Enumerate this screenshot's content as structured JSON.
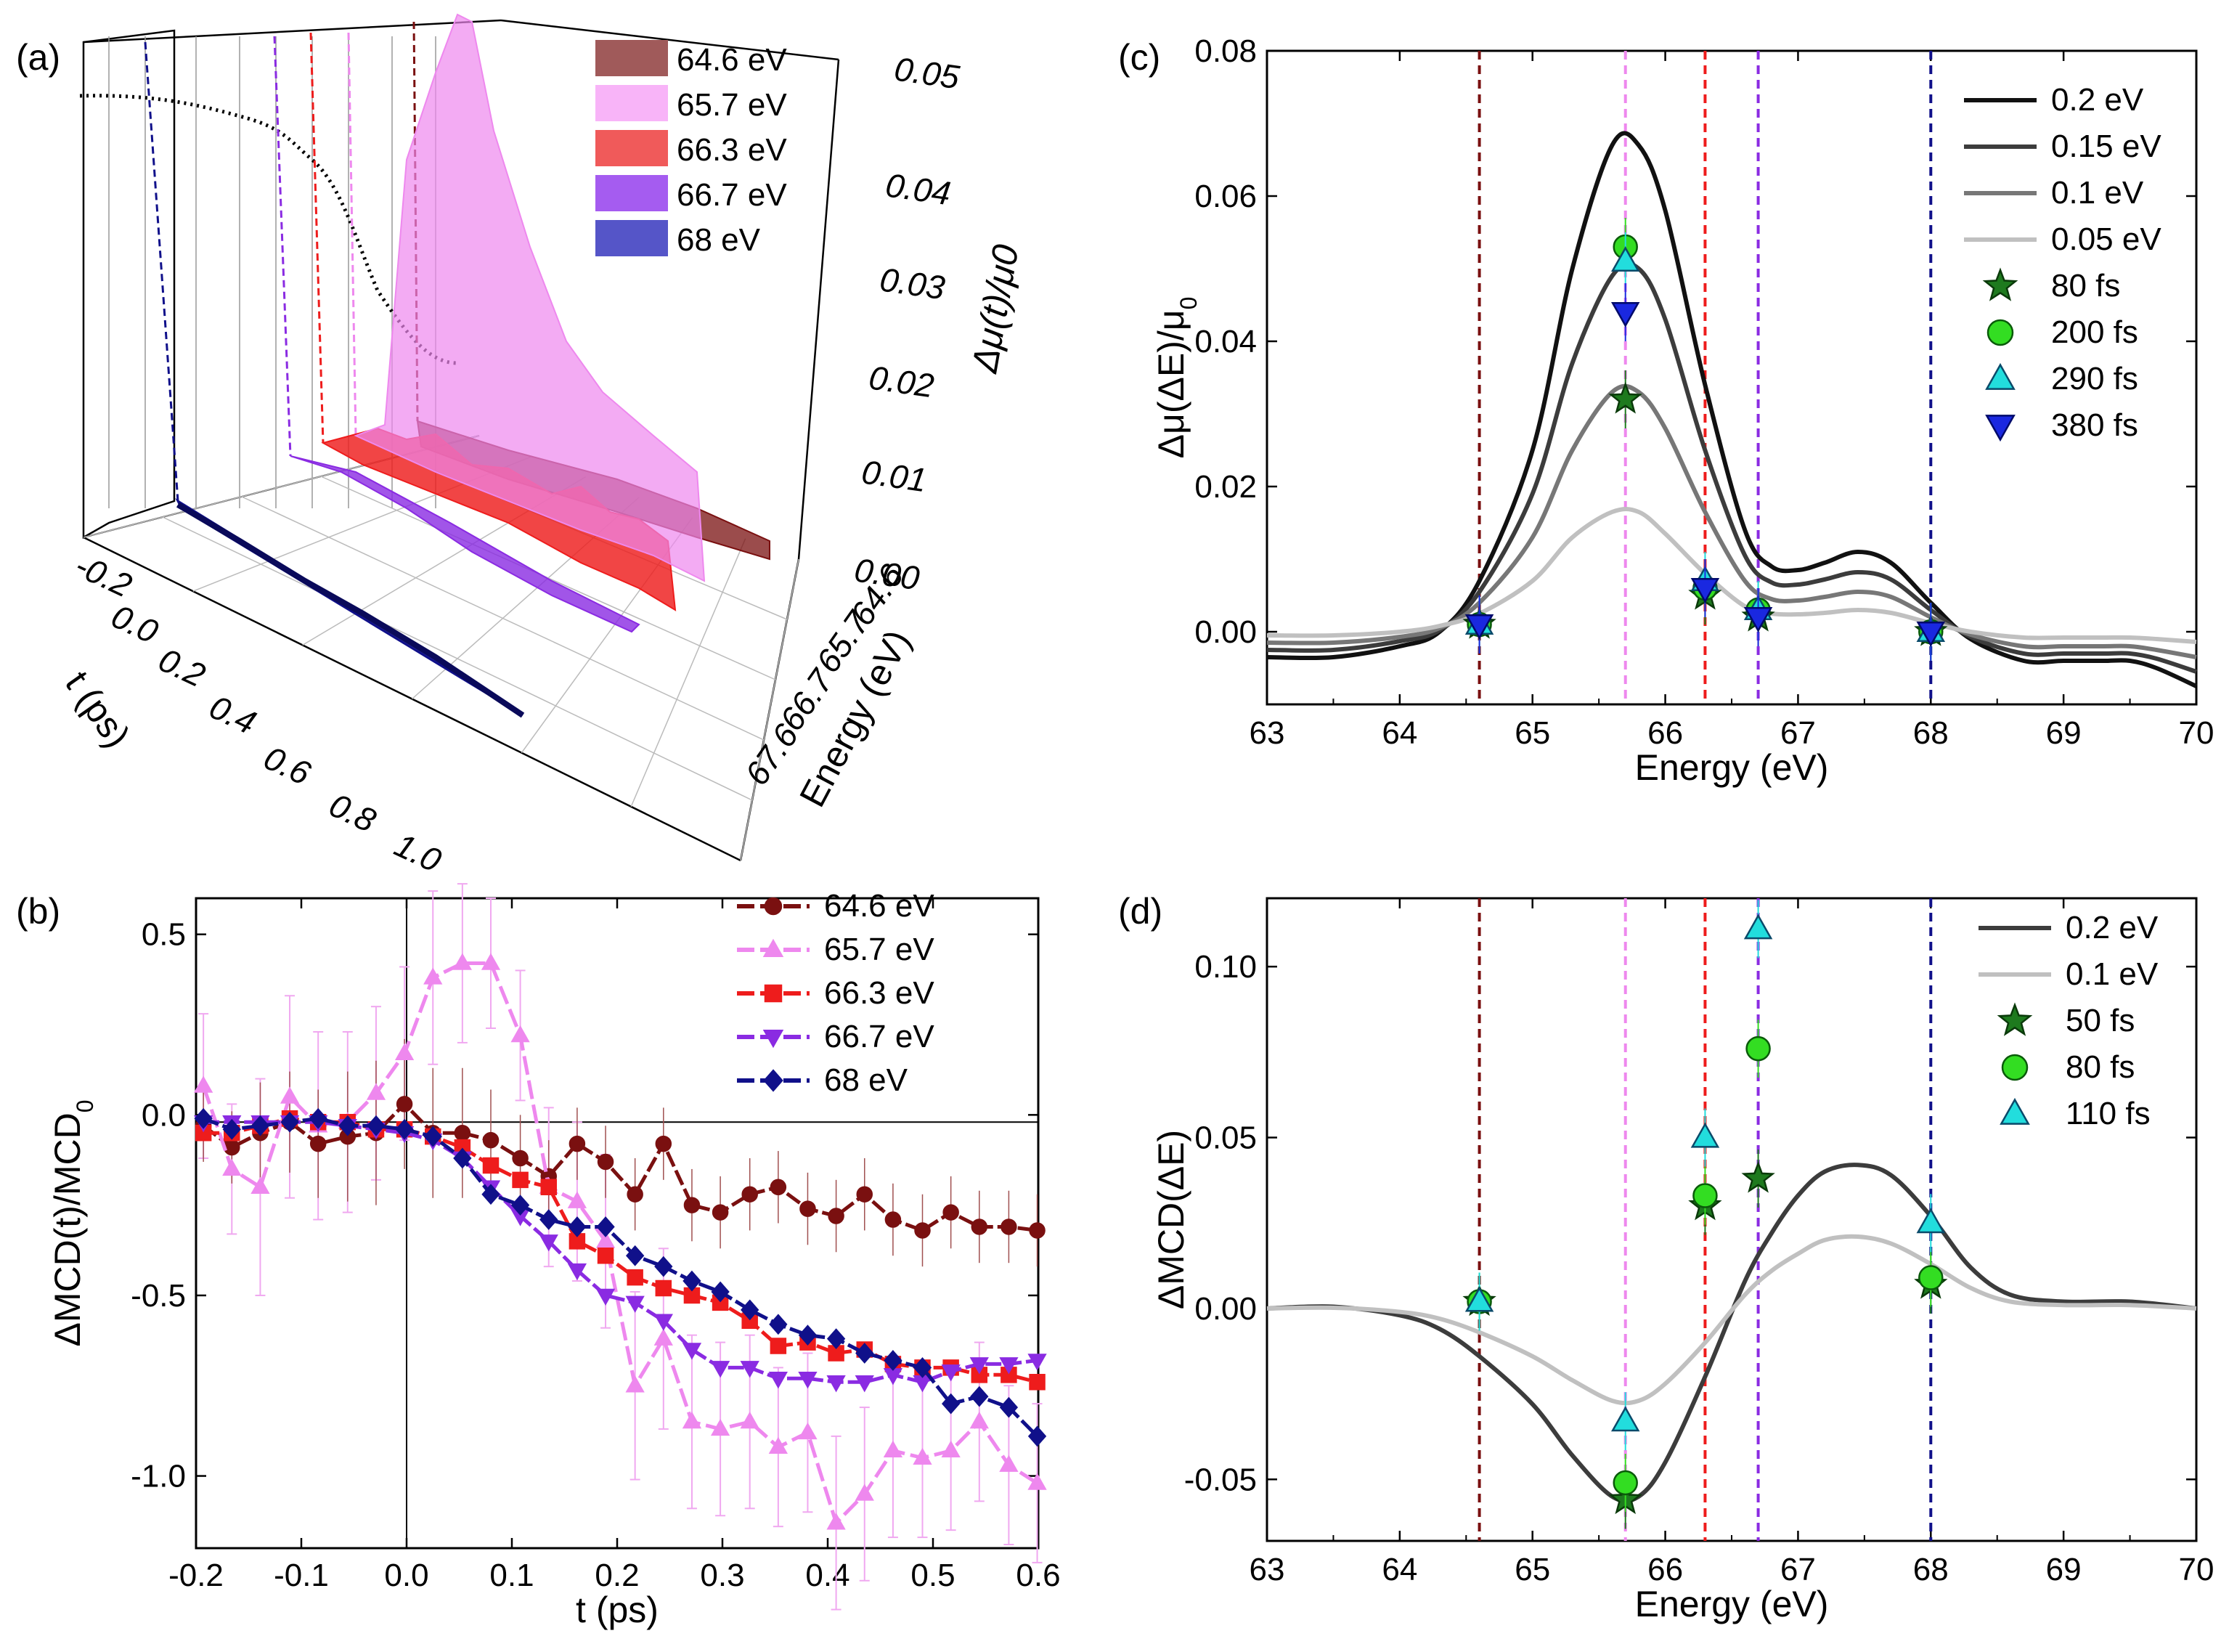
{
  "colors": {
    "e646": "#7a1010",
    "e657": "#ee88ee",
    "e663": "#ee1c1c",
    "e667": "#8a2be2",
    "e68": "#10108a",
    "c02": "#111111",
    "c015": "#3c3c3c",
    "c01": "#777777",
    "c005": "#c0c0c0",
    "green_dark": "#1e7a1e",
    "green": "#33dd22",
    "cyan": "#22dddd",
    "blue": "#1a28e0"
  },
  "chart_data": [
    {
      "panel": "(a)",
      "type": "area",
      "legend": [
        "64.6 eV",
        "65.7 eV",
        "66.3 eV",
        "66.7 eV",
        "68 eV"
      ],
      "zlabel": "Δμ(t)/μ0",
      "z_ticks": [
        "0.00",
        "0.01",
        "0.02",
        "0.03",
        "0.04",
        "0.05"
      ],
      "tlabel": "t (ps)",
      "t_ticks": [
        "-0.2",
        "0.0",
        "0.2",
        "0.4",
        "0.6",
        "0.8",
        "1.0"
      ],
      "elabel": "Energy (eV)",
      "e_ticks": [
        "64.6",
        "65.7",
        "66.7",
        "67.6"
      ],
      "series": [
        {
          "name": "65.7 eV",
          "t": [
            -0.2,
            -0.1,
            0.0,
            0.05,
            0.1,
            0.2,
            0.3,
            0.5,
            0.7,
            0.9,
            1.0
          ],
          "values": [
            0.004,
            0.015,
            0.04,
            0.052,
            0.05,
            0.04,
            0.03,
            0.02,
            0.012,
            0.006,
            0.004
          ]
        },
        {
          "name": "66.3 eV",
          "t": [
            -0.2,
            0.0,
            0.2,
            0.4,
            0.6,
            0.8,
            1.0
          ],
          "values": [
            0.004,
            0.008,
            0.006,
            0.007,
            0.005,
            0.006,
            0.004
          ]
        },
        {
          "name": "64.6 eV",
          "t": [
            -0.2,
            0.0,
            0.4,
            0.8,
            1.0
          ],
          "values": [
            0.003,
            0.003,
            0.002,
            0.002,
            0.0015
          ]
        },
        {
          "name": "66.7 eV",
          "t": [
            -0.2,
            0.0,
            0.4,
            0.8,
            1.0
          ],
          "values": [
            0.002,
            0.002,
            0.0015,
            0.001,
            0.001
          ]
        },
        {
          "name": "68 eV",
          "t": [
            -0.2,
            0.0,
            0.4,
            0.8,
            1.0
          ],
          "values": [
            0.0015,
            0.0012,
            0.001,
            0.001,
            0.001
          ]
        }
      ]
    },
    {
      "panel": "(b)",
      "type": "line",
      "xlabel": "t (ps)",
      "ylabel": "ΔMCD(t)/MCD0",
      "xlim": [
        -0.2,
        0.6
      ],
      "ylim": [
        -1.2,
        0.6
      ],
      "x_ticks": [
        "-0.2",
        "-0.1",
        "0.0",
        "0.1",
        "0.2",
        "0.3",
        "0.4",
        "0.5",
        "0.6"
      ],
      "y_ticks": [
        "0.5",
        "0.0",
        "-0.5",
        "-1.0"
      ],
      "series": [
        {
          "name": "64.6 eV",
          "marker": "circle",
          "x": [
            -0.193,
            -0.166,
            -0.139,
            -0.111,
            -0.084,
            -0.056,
            -0.029,
            -0.002,
            0.025,
            0.053,
            0.08,
            0.108,
            0.135,
            0.162,
            0.189,
            0.217,
            0.244,
            0.271,
            0.298,
            0.326,
            0.353,
            0.381,
            0.408,
            0.435,
            0.462,
            0.49,
            0.517,
            0.544,
            0.572,
            0.599
          ],
          "y": [
            -0.03,
            -0.09,
            -0.05,
            -0.02,
            -0.08,
            -0.06,
            -0.05,
            0.03,
            -0.05,
            -0.05,
            -0.07,
            -0.12,
            -0.17,
            -0.08,
            -0.13,
            -0.22,
            -0.08,
            -0.25,
            -0.27,
            -0.22,
            -0.2,
            -0.26,
            -0.28,
            -0.22,
            -0.29,
            -0.32,
            -0.27,
            -0.31,
            -0.31,
            -0.32
          ]
        },
        {
          "name": "65.7 eV",
          "marker": "triangle",
          "x": [
            -0.193,
            -0.166,
            -0.139,
            -0.111,
            -0.084,
            -0.056,
            -0.029,
            -0.002,
            0.025,
            0.053,
            0.08,
            0.108,
            0.135,
            0.162,
            0.189,
            0.217,
            0.244,
            0.271,
            0.298,
            0.326,
            0.353,
            0.381,
            0.408,
            0.435,
            0.462,
            0.49,
            0.517,
            0.544,
            0.572,
            0.599
          ],
          "y": [
            0.08,
            -0.15,
            -0.2,
            0.05,
            -0.03,
            -0.02,
            0.06,
            0.17,
            0.38,
            0.42,
            0.42,
            0.22,
            -0.2,
            -0.24,
            -0.35,
            -0.75,
            -0.62,
            -0.85,
            -0.87,
            -0.85,
            -0.92,
            -0.88,
            -1.13,
            -1.05,
            -0.93,
            -0.95,
            -0.93,
            -0.85,
            -0.97,
            -1.02
          ]
        },
        {
          "name": "66.3 eV",
          "marker": "square",
          "x": [
            -0.193,
            -0.166,
            -0.139,
            -0.111,
            -0.084,
            -0.056,
            -0.029,
            -0.002,
            0.025,
            0.053,
            0.08,
            0.108,
            0.135,
            0.162,
            0.189,
            0.217,
            0.244,
            0.271,
            0.298,
            0.326,
            0.353,
            0.381,
            0.408,
            0.435,
            0.462,
            0.49,
            0.517,
            0.544,
            0.572,
            0.599
          ],
          "y": [
            -0.05,
            -0.05,
            -0.03,
            -0.01,
            -0.02,
            -0.02,
            -0.04,
            -0.04,
            -0.06,
            -0.09,
            -0.14,
            -0.18,
            -0.2,
            -0.35,
            -0.39,
            -0.45,
            -0.48,
            -0.5,
            -0.52,
            -0.57,
            -0.64,
            -0.63,
            -0.66,
            -0.65,
            -0.69,
            -0.7,
            -0.7,
            -0.72,
            -0.72,
            -0.74
          ]
        },
        {
          "name": "66.7 eV",
          "marker": "triangle-down",
          "x": [
            -0.193,
            -0.166,
            -0.139,
            -0.111,
            -0.084,
            -0.056,
            -0.029,
            -0.002,
            0.025,
            0.053,
            0.08,
            0.108,
            0.135,
            0.162,
            0.189,
            0.217,
            0.244,
            0.271,
            0.298,
            0.326,
            0.353,
            0.381,
            0.408,
            0.435,
            0.462,
            0.49,
            0.517,
            0.544,
            0.572,
            0.599
          ],
          "y": [
            -0.02,
            -0.02,
            -0.02,
            -0.02,
            -0.02,
            -0.03,
            -0.04,
            -0.05,
            -0.07,
            -0.12,
            -0.2,
            -0.28,
            -0.35,
            -0.43,
            -0.5,
            -0.52,
            -0.57,
            -0.65,
            -0.7,
            -0.7,
            -0.73,
            -0.73,
            -0.74,
            -0.74,
            -0.72,
            -0.74,
            -0.71,
            -0.69,
            -0.69,
            -0.68
          ]
        },
        {
          "name": "68 eV",
          "marker": "diamond",
          "x": [
            -0.193,
            -0.166,
            -0.139,
            -0.111,
            -0.084,
            -0.056,
            -0.029,
            -0.002,
            0.025,
            0.053,
            0.08,
            0.108,
            0.135,
            0.162,
            0.189,
            0.217,
            0.244,
            0.271,
            0.298,
            0.326,
            0.353,
            0.381,
            0.408,
            0.435,
            0.462,
            0.49,
            0.517,
            0.544,
            0.572,
            0.599
          ],
          "y": [
            -0.01,
            -0.04,
            -0.03,
            -0.02,
            -0.01,
            -0.03,
            -0.03,
            -0.04,
            -0.06,
            -0.12,
            -0.22,
            -0.25,
            -0.29,
            -0.31,
            -0.31,
            -0.39,
            -0.42,
            -0.46,
            -0.49,
            -0.54,
            -0.58,
            -0.61,
            -0.62,
            -0.66,
            -0.68,
            -0.7,
            -0.8,
            -0.78,
            -0.81,
            -0.89
          ]
        }
      ],
      "error_65_7": [
        0.2,
        0.18,
        0.3,
        0.28,
        0.26,
        0.25,
        0.24,
        0.24,
        0.24,
        0.22,
        0.18,
        0.18,
        0.22,
        0.22,
        0.24,
        0.26,
        0.25,
        0.24,
        0.24,
        0.24,
        0.22,
        0.22,
        0.24,
        0.24,
        0.24,
        0.22,
        0.22,
        0.22,
        0.22,
        0.22
      ],
      "error_64_6": [
        0.1,
        0.1,
        0.14,
        0.14,
        0.15,
        0.18,
        0.2,
        0.18,
        0.18,
        0.18,
        0.14,
        0.12,
        0.1,
        0.1,
        0.1,
        0.1,
        0.1,
        0.1,
        0.1,
        0.1,
        0.1,
        0.1,
        0.1,
        0.1,
        0.1,
        0.1,
        0.1,
        0.1,
        0.1,
        0.1
      ]
    },
    {
      "panel": "(c)",
      "type": "line",
      "xlabel": "Energy (eV)",
      "ylabel": "Δμ(ΔE)/μ0",
      "xlim": [
        63,
        70
      ],
      "ylim": [
        -0.01,
        0.08
      ],
      "x_ticks": [
        "63",
        "64",
        "65",
        "66",
        "67",
        "68",
        "69",
        "70"
      ],
      "y_ticks": [
        "0.00",
        "0.02",
        "0.04",
        "0.06",
        "0.08"
      ],
      "vlines": [
        64.6,
        65.7,
        66.3,
        66.7,
        68.0
      ],
      "curves": [
        {
          "name": "0.2 eV",
          "x": [
            63,
            63.5,
            64,
            64.3,
            64.6,
            65,
            65.3,
            65.6,
            65.8,
            66,
            66.3,
            66.6,
            66.8,
            67,
            67.2,
            67.45,
            67.7,
            68,
            68.3,
            68.7,
            69,
            69.3,
            69.5,
            69.7,
            70
          ],
          "y": [
            -0.0035,
            -0.0035,
            -0.002,
            0.0,
            0.007,
            0.025,
            0.05,
            0.067,
            0.067,
            0.058,
            0.034,
            0.014,
            0.009,
            0.0085,
            0.0095,
            0.011,
            0.0095,
            0.004,
            -0.001,
            -0.004,
            -0.004,
            -0.004,
            -0.004,
            -0.005,
            -0.0075
          ]
        },
        {
          "name": "0.15 eV",
          "x": [
            63,
            63.5,
            64,
            64.3,
            64.6,
            65,
            65.3,
            65.6,
            65.8,
            66,
            66.3,
            66.6,
            66.8,
            67,
            67.2,
            67.45,
            67.7,
            68,
            68.3,
            68.7,
            69,
            69.3,
            69.5,
            69.7,
            70
          ],
          "y": [
            -0.0025,
            -0.0025,
            -0.0013,
            0.0002,
            0.0055,
            0.019,
            0.037,
            0.049,
            0.05,
            0.043,
            0.025,
            0.0105,
            0.0068,
            0.0065,
            0.0072,
            0.0082,
            0.0072,
            0.003,
            -0.0007,
            -0.003,
            -0.003,
            -0.003,
            -0.003,
            -0.0037,
            -0.0055
          ]
        },
        {
          "name": "0.1 eV",
          "x": [
            63,
            63.5,
            64,
            64.3,
            64.6,
            65,
            65.3,
            65.6,
            65.8,
            66,
            66.3,
            66.6,
            66.8,
            67,
            67.2,
            67.45,
            67.7,
            68,
            68.3,
            68.7,
            69,
            69.3,
            69.5,
            69.7,
            70
          ],
          "y": [
            -0.0015,
            -0.0015,
            -0.0007,
            0.0005,
            0.004,
            0.013,
            0.025,
            0.033,
            0.033,
            0.028,
            0.0165,
            0.007,
            0.0045,
            0.0043,
            0.0048,
            0.0055,
            0.0048,
            0.002,
            -0.0004,
            -0.002,
            -0.002,
            -0.002,
            -0.002,
            -0.0025,
            -0.0035
          ]
        },
        {
          "name": "0.05 eV",
          "x": [
            63,
            63.5,
            64,
            64.3,
            64.6,
            65,
            65.3,
            65.6,
            65.8,
            66,
            66.3,
            66.6,
            66.8,
            67,
            67.2,
            67.45,
            67.7,
            68,
            68.3,
            68.7,
            69,
            69.3,
            69.5,
            69.7,
            70
          ],
          "y": [
            -0.0005,
            -0.0005,
            0.0,
            0.0008,
            0.0025,
            0.007,
            0.013,
            0.0165,
            0.0165,
            0.0135,
            0.008,
            0.0035,
            0.0025,
            0.0024,
            0.0026,
            0.003,
            0.0026,
            0.0012,
            0.0,
            -0.0008,
            -0.0008,
            -0.0008,
            -0.0008,
            -0.001,
            -0.0014
          ]
        }
      ],
      "points": [
        {
          "name": "80 fs",
          "marker": "star",
          "x": [
            64.6,
            65.7,
            66.3,
            66.7,
            68.0
          ],
          "y": [
            0.001,
            0.032,
            0.005,
            0.002,
            0.0
          ]
        },
        {
          "name": "200 fs",
          "marker": "circle",
          "x": [
            64.6,
            65.7,
            66.3,
            66.7,
            68.0
          ],
          "y": [
            0.001,
            0.053,
            0.006,
            0.003,
            0.0
          ]
        },
        {
          "name": "290 fs",
          "marker": "triangle",
          "x": [
            64.6,
            65.7,
            66.3,
            66.7,
            68.0
          ],
          "y": [
            0.001,
            0.051,
            0.007,
            0.003,
            0.0
          ]
        },
        {
          "name": "380 fs",
          "marker": "triangle-down",
          "x": [
            64.6,
            65.7,
            66.3,
            66.7,
            68.0
          ],
          "y": [
            0.001,
            0.044,
            0.006,
            0.002,
            0.0
          ]
        }
      ]
    },
    {
      "panel": "(d)",
      "type": "line",
      "xlabel": "Energy (eV)",
      "ylabel": "ΔMCD(ΔE)",
      "xlim": [
        63,
        70
      ],
      "ylim": [
        -0.068,
        0.12
      ],
      "x_ticks": [
        "63",
        "64",
        "65",
        "66",
        "67",
        "68",
        "69",
        "70"
      ],
      "y_ticks": [
        "-0.05",
        "0.00",
        "0.05",
        "0.10"
      ],
      "vlines": [
        64.6,
        65.7,
        66.3,
        66.7,
        68.0
      ],
      "curves": [
        {
          "name": "0.2 eV",
          "x": [
            63,
            63.5,
            64,
            64.3,
            64.6,
            65,
            65.3,
            65.6,
            65.8,
            66,
            66.3,
            66.6,
            66.8,
            67,
            67.2,
            67.45,
            67.7,
            68,
            68.3,
            68.6,
            69,
            69.5,
            70
          ],
          "y": [
            0.0,
            0.0005,
            -0.002,
            -0.006,
            -0.014,
            -0.028,
            -0.043,
            -0.055,
            -0.055,
            -0.045,
            -0.02,
            0.008,
            0.022,
            0.033,
            0.04,
            0.042,
            0.039,
            0.027,
            0.012,
            0.004,
            0.002,
            0.002,
            0.0
          ]
        },
        {
          "name": "0.1 eV",
          "x": [
            63,
            63.5,
            64,
            64.3,
            64.6,
            65,
            65.3,
            65.6,
            65.8,
            66,
            66.3,
            66.6,
            66.8,
            67,
            67.2,
            67.45,
            67.7,
            68,
            68.3,
            68.6,
            69,
            69.5,
            70
          ],
          "y": [
            0.0,
            0.0002,
            -0.001,
            -0.003,
            -0.007,
            -0.014,
            -0.021,
            -0.027,
            -0.027,
            -0.022,
            -0.01,
            0.004,
            0.011,
            0.016,
            0.02,
            0.021,
            0.019,
            0.013,
            0.006,
            0.002,
            0.001,
            0.001,
            0.0
          ]
        }
      ],
      "points": [
        {
          "name": "50 fs",
          "marker": "star",
          "x": [
            64.6,
            65.7,
            66.3,
            66.7,
            68.0
          ],
          "y": [
            0.002,
            -0.056,
            0.03,
            0.038,
            0.007
          ]
        },
        {
          "name": "80 fs",
          "marker": "circle",
          "x": [
            64.6,
            65.7,
            66.3,
            66.7,
            68.0
          ],
          "y": [
            0.002,
            -0.051,
            0.033,
            0.076,
            0.009
          ]
        },
        {
          "name": "110 fs",
          "marker": "triangle",
          "x": [
            64.6,
            65.7,
            66.3,
            66.7,
            68.0
          ],
          "y": [
            0.002,
            -0.033,
            0.05,
            0.111,
            0.025
          ]
        }
      ]
    }
  ]
}
